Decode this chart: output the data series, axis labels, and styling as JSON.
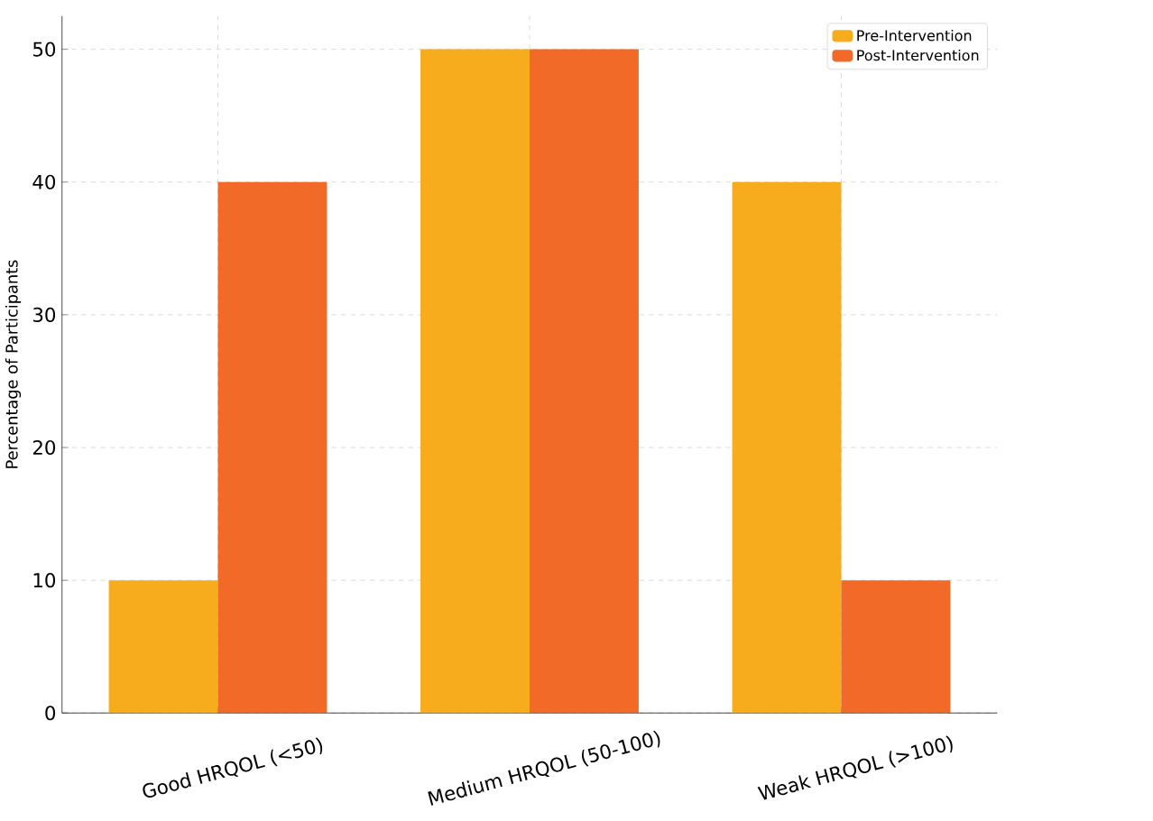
{
  "chart_data": {
    "type": "bar",
    "categories": [
      "Good HRQOL (<50)",
      "Medium HRQOL (50-100)",
      "Weak HRQOL (>100)"
    ],
    "series": [
      {
        "name": "Pre-Intervention",
        "color": "#f7ac1e",
        "values": [
          10,
          50,
          40
        ]
      },
      {
        "name": "Post-Intervention",
        "color": "#f26a27",
        "values": [
          40,
          50,
          10
        ]
      }
    ],
    "ylabel": "Percentage of Participants",
    "ylim": [
      0,
      52.5
    ],
    "yticks": [
      0,
      10,
      20,
      30,
      40,
      50
    ],
    "grid": true,
    "legend": "top right"
  }
}
